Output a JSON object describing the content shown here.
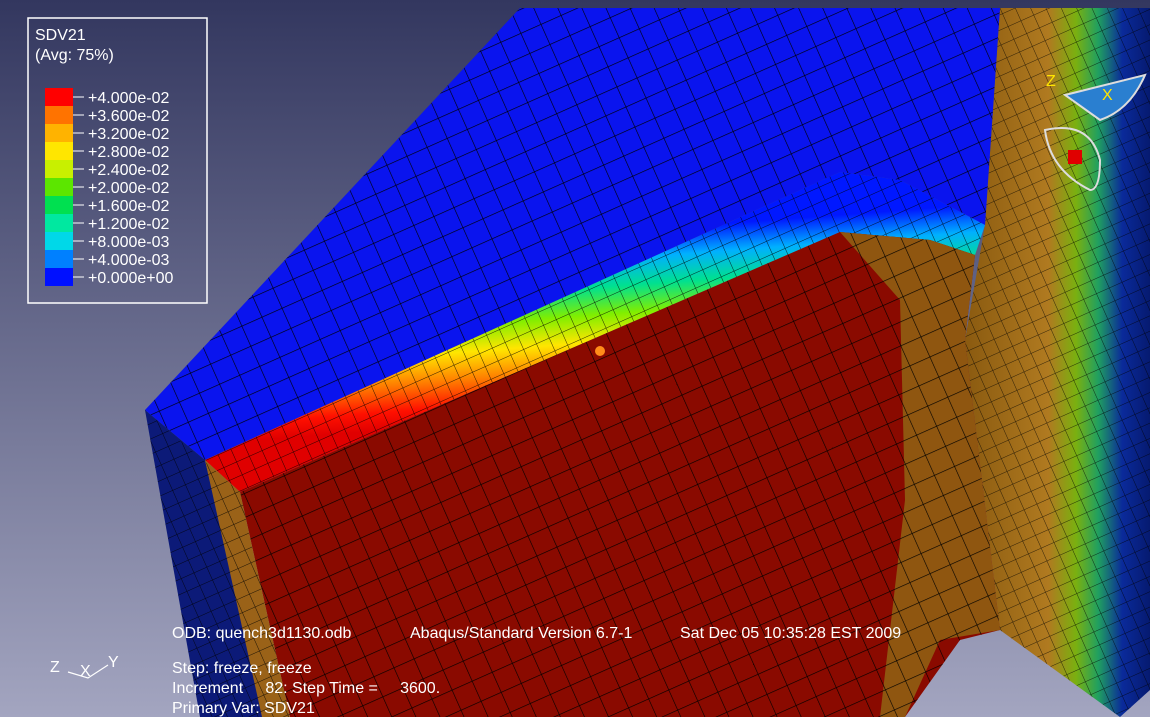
{
  "legend": {
    "title": "SDV21",
    "subtitle": "(Avg: 75%)",
    "labels": [
      "+4.000e-02",
      "+3.600e-02",
      "+3.200e-02",
      "+2.800e-02",
      "+2.400e-02",
      "+2.000e-02",
      "+1.600e-02",
      "+1.200e-02",
      "+8.000e-03",
      "+4.000e-03",
      "+0.000e+00"
    ],
    "colors": [
      "#ff0000",
      "#ff7300",
      "#ffb300",
      "#ffe600",
      "#c8f000",
      "#5ce600",
      "#00e050",
      "#00e8a0",
      "#00d8e8",
      "#0080ff",
      "#0010ff"
    ]
  },
  "info": {
    "odb": "ODB: quench3d1130.odb",
    "version": "Abaqus/Standard Version 6.7-1",
    "date": "Sat Dec 05 10:35:28 EST 2009",
    "step": "Step: freeze, freeze",
    "increment": "Increment     82: Step Time =     3600.",
    "primary_var": "Primary Var: SDV21"
  },
  "triad": {
    "z": "Z",
    "x": "X",
    "y": "Y"
  },
  "view_triad": {
    "z": "Z",
    "x": "X"
  }
}
